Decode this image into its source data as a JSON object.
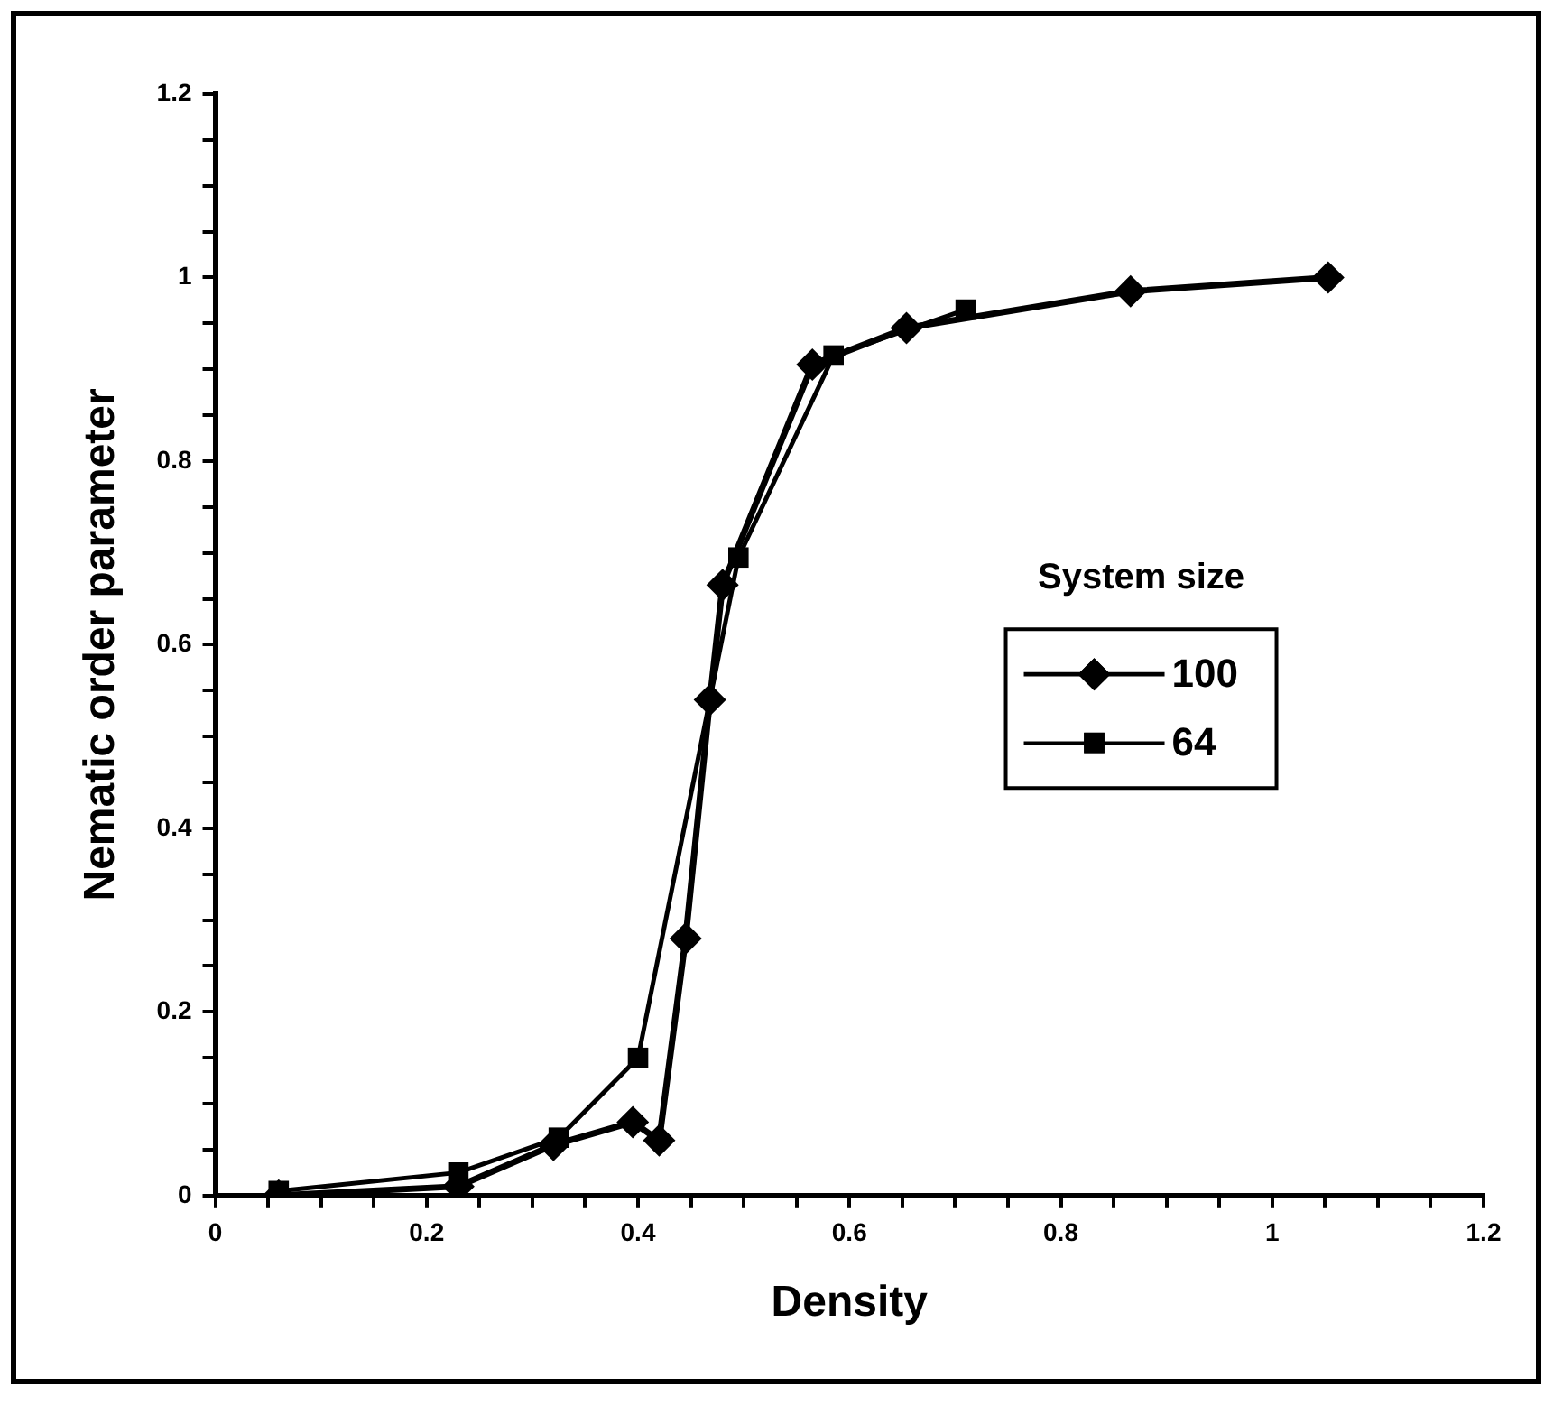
{
  "chart_data": {
    "type": "line",
    "xlabel": "Density",
    "ylabel": "Nematic order parameter",
    "legend_title": "System size",
    "series": [
      {
        "name": "100",
        "color": "#000000",
        "marker": "diamond",
        "x": [
          0.06,
          0.23,
          0.32,
          0.395,
          0.42,
          0.445,
          0.468,
          0.48,
          0.565,
          0.654,
          0.866,
          1.053
        ],
        "values": [
          0,
          0.01,
          0.055,
          0.08,
          0.06,
          0.28,
          0.54,
          0.665,
          0.905,
          0.945,
          0.985,
          1.0
        ]
      },
      {
        "name": "64",
        "color": "#000000",
        "marker": "square",
        "x": [
          0.06,
          0.23,
          0.325,
          0.4,
          0.495,
          0.585,
          0.71
        ],
        "values": [
          0.005,
          0.025,
          0.063,
          0.15,
          0.695,
          0.915,
          0.965
        ]
      }
    ],
    "xlim": [
      0,
      1.2
    ],
    "ylim": [
      0,
      1.2
    ],
    "xticks": [
      0,
      {
        "value": 0.05,
        "label": null
      },
      {
        "value": 0.1,
        "label": null
      },
      {
        "value": 0.15,
        "label": null
      },
      0.2,
      {
        "value": 0.25,
        "label": null
      },
      {
        "value": 0.3,
        "label": null
      },
      {
        "value": 0.35,
        "label": null
      },
      0.4,
      {
        "value": 0.45,
        "label": null
      },
      {
        "value": 0.5,
        "label": null
      },
      {
        "value": 0.55,
        "label": null
      },
      0.6,
      {
        "value": 0.65,
        "label": null
      },
      {
        "value": 0.7,
        "label": null
      },
      {
        "value": 0.75,
        "label": null
      },
      0.8,
      {
        "value": 0.85,
        "label": null
      },
      {
        "value": 0.9,
        "label": null
      },
      {
        "value": 0.95,
        "label": null
      },
      1,
      {
        "value": 1.05,
        "label": null
      },
      {
        "value": 1.1,
        "label": null
      },
      {
        "value": 1.15,
        "label": null
      },
      1.2
    ],
    "yticks": [
      0,
      {
        "value": 0.05,
        "label": null
      },
      {
        "value": 0.1,
        "label": null
      },
      {
        "value": 0.15,
        "label": null
      },
      0.2,
      {
        "value": 0.25,
        "label": null
      },
      {
        "value": 0.3,
        "label": null
      },
      {
        "value": 0.35,
        "label": null
      },
      0.4,
      {
        "value": 0.45,
        "label": null
      },
      {
        "value": 0.5,
        "label": null
      },
      {
        "value": 0.55,
        "label": null
      },
      0.6,
      {
        "value": 0.65,
        "label": null
      },
      {
        "value": 0.7,
        "label": null
      },
      {
        "value": 0.75,
        "label": null
      },
      0.8,
      {
        "value": 0.85,
        "label": null
      },
      {
        "value": 0.9,
        "label": null
      },
      {
        "value": 0.95,
        "label": null
      },
      1,
      {
        "value": 1.05,
        "label": null
      },
      {
        "value": 1.1,
        "label": null
      },
      {
        "value": 1.15,
        "label": null
      },
      1.2
    ],
    "grid": false,
    "legend": "right",
    "line_style": "solid"
  }
}
